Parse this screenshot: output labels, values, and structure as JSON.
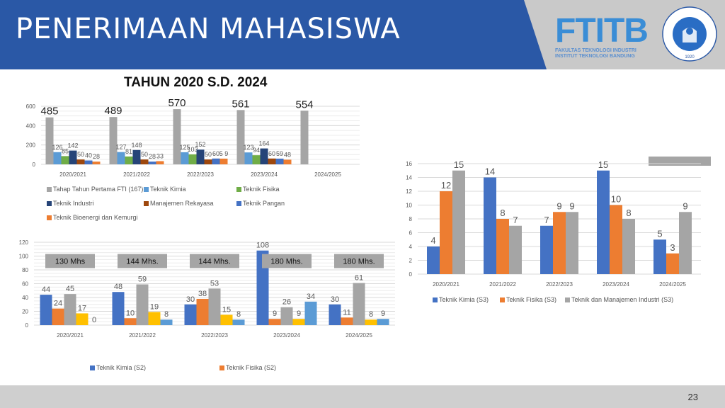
{
  "header": {
    "title": "PENERIMAAN MAHASISWA",
    "logo_text": "FTITB",
    "logo_sub_1": "FAKULTAS TEKNOLOGI INDUSTRI",
    "logo_sub_2": "INSTITUT TEKNOLOGI BANDUNG",
    "seal_text": "INSTITUT TEKNOLOGI BANDUNG",
    "seal_year": "1920",
    "blue": "#2a58a6",
    "gray": "#c9c9c9"
  },
  "footer": {
    "page_number": "23"
  },
  "chart_data": [
    {
      "type": "bar",
      "title": "TAHUN 2020 S.D. 2024",
      "categories": [
        "2020/2021",
        "2021/2022",
        "2022/2023",
        "2023/2024",
        "2024/2025"
      ],
      "ylim": [
        0,
        600
      ],
      "yticks": [
        "0",
        "200",
        "400",
        "600"
      ],
      "grid": true,
      "legend_position": "bottom",
      "series": [
        {
          "name": "Tahap Tahun Pertama FTI (167)",
          "color": "#a5a5a5",
          "values": [
            485,
            489,
            570,
            561,
            554
          ],
          "labels": [
            "485",
            "489",
            "570",
            "561",
            "554"
          ]
        },
        {
          "name": "Teknik Kimia",
          "color": "#5b9bd5",
          "values": [
            126,
            127,
            125,
            123,
            null
          ],
          "labels": [
            "126",
            "127",
            "125",
            "123",
            ""
          ]
        },
        {
          "name": "Teknik Fisika",
          "color": "#70ad47",
          "values": [
            85,
            81,
            103,
            94,
            null
          ],
          "labels": [
            "85",
            "81",
            "103",
            "94",
            ""
          ]
        },
        {
          "name": "Teknik Industri",
          "color": "#264478",
          "values": [
            142,
            148,
            152,
            164,
            null
          ],
          "labels": [
            "142",
            "148",
            "152",
            "164",
            ""
          ]
        },
        {
          "name": "Manajemen Rekayasa",
          "color": "#9e480e",
          "values": [
            50,
            50,
            50,
            60,
            null
          ],
          "labels": [
            "50",
            "50",
            "50",
            "60",
            ""
          ]
        },
        {
          "name": "Teknik Pangan",
          "color": "#4472c4",
          "values": [
            40,
            28,
            60,
            59,
            null
          ],
          "labels": [
            "40",
            "28",
            "60",
            "59",
            ""
          ]
        },
        {
          "name": "Teknik Bioenergi dan Kemurgi",
          "color": "#ed7d31",
          "values": [
            28,
            33,
            59,
            48,
            null
          ],
          "labels": [
            "28",
            "33",
            "5 9",
            "48",
            ""
          ]
        }
      ]
    },
    {
      "type": "bar",
      "title": "",
      "categories": [
        "2020/2021",
        "2021/2022",
        "2022/2023",
        "2023/2024",
        "2024/2025"
      ],
      "ylim": [
        0,
        120
      ],
      "yticks": [
        "0",
        "20",
        "40",
        "60",
        "80",
        "100",
        "120"
      ],
      "grid": true,
      "legend_position": "bottom",
      "annotations": [
        "130 Mhs",
        "144 Mhs.",
        "144 Mhs.",
        "180 Mhs.",
        "180 Mhs."
      ],
      "series": [
        {
          "name": "Teknik Kimia (S2)",
          "color": "#4472c4",
          "values": [
            44,
            48,
            30,
            108,
            30
          ],
          "labels": [
            "44",
            "48",
            "30",
            "108",
            "30"
          ]
        },
        {
          "name": "Teknik Fisika (S2)",
          "color": "#ed7d31",
          "values": [
            24,
            10,
            38,
            9,
            11
          ],
          "labels": [
            "24",
            "10",
            "38",
            "9",
            "11"
          ]
        },
        {
          "name": "",
          "color": "#a5a5a5",
          "values": [
            45,
            59,
            53,
            26,
            61
          ],
          "labels": [
            "45",
            "59",
            "53",
            "26",
            "61"
          ]
        },
        {
          "name": "",
          "color": "#ffc000",
          "values": [
            17,
            19,
            15,
            9,
            8
          ],
          "labels": [
            "17",
            "19",
            "15",
            "9",
            "8"
          ]
        },
        {
          "name": "",
          "color": "#5b9bd5",
          "values": [
            0,
            8,
            8,
            34,
            9
          ],
          "labels": [
            "0",
            "8",
            "8",
            "34",
            "9"
          ]
        }
      ]
    },
    {
      "type": "bar",
      "title": "",
      "categories": [
        "2020/2021",
        "2021/2022",
        "2022/2023",
        "2023/2024",
        "2024/2025"
      ],
      "ylim": [
        0,
        16
      ],
      "yticks": [
        "0",
        "2",
        "4",
        "6",
        "8",
        "10",
        "12",
        "14",
        "16"
      ],
      "grid": true,
      "legend_position": "bottom",
      "series": [
        {
          "name": "Teknik Kimia (S3)",
          "color": "#4472c4",
          "values": [
            4,
            14,
            7,
            15,
            5
          ],
          "labels": [
            "4",
            "14",
            "7",
            "15",
            "5"
          ]
        },
        {
          "name": "Teknik Fisika (S3)",
          "color": "#ed7d31",
          "values": [
            12,
            8,
            9,
            10,
            3
          ],
          "labels": [
            "12",
            "8",
            "9",
            "10",
            "3"
          ]
        },
        {
          "name": "Teknik dan Manajemen Industri (S3)",
          "color": "#a5a5a5",
          "values": [
            15,
            7,
            9,
            8,
            9
          ],
          "labels": [
            "15",
            "7",
            "9",
            "8",
            "9"
          ]
        }
      ]
    }
  ]
}
